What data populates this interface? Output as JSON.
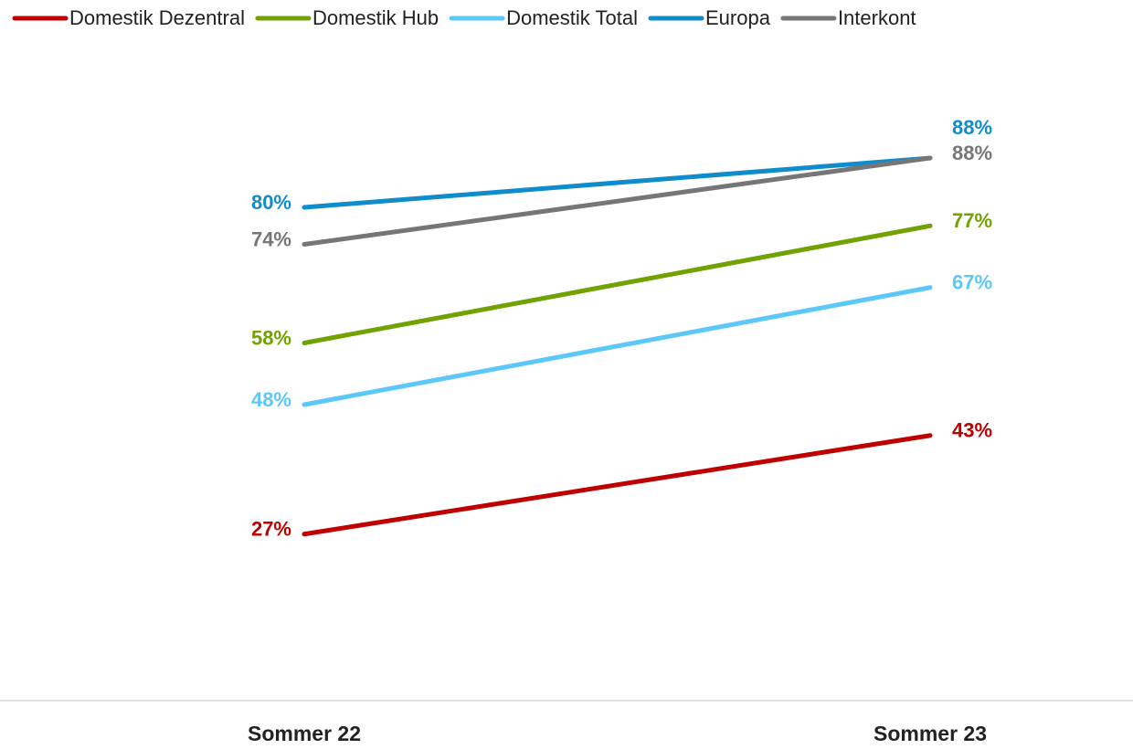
{
  "chart_data": {
    "type": "line",
    "categories": [
      "Sommer 22",
      "Sommer 23"
    ],
    "ylim": [
      0,
      100
    ],
    "legend": "top",
    "series": [
      {
        "name": "Domestik Dezentral",
        "color": "#c00000",
        "values": [
          27,
          43
        ],
        "value_labels": [
          "27%",
          "43%"
        ]
      },
      {
        "name": "Domestik Hub",
        "color": "#71a200",
        "values": [
          58,
          77
        ],
        "value_labels": [
          "58%",
          "77%"
        ]
      },
      {
        "name": "Domestik Total",
        "color": "#5cc8fa",
        "values": [
          48,
          67
        ],
        "value_labels": [
          "48%",
          "67%"
        ]
      },
      {
        "name": "Europa",
        "color": "#0f8ccb",
        "values": [
          80,
          88
        ],
        "value_labels": [
          "80%",
          "88%"
        ]
      },
      {
        "name": "Interkont",
        "color": "#767676",
        "values": [
          74,
          88
        ],
        "value_labels": [
          "74%",
          "88%"
        ]
      }
    ]
  }
}
